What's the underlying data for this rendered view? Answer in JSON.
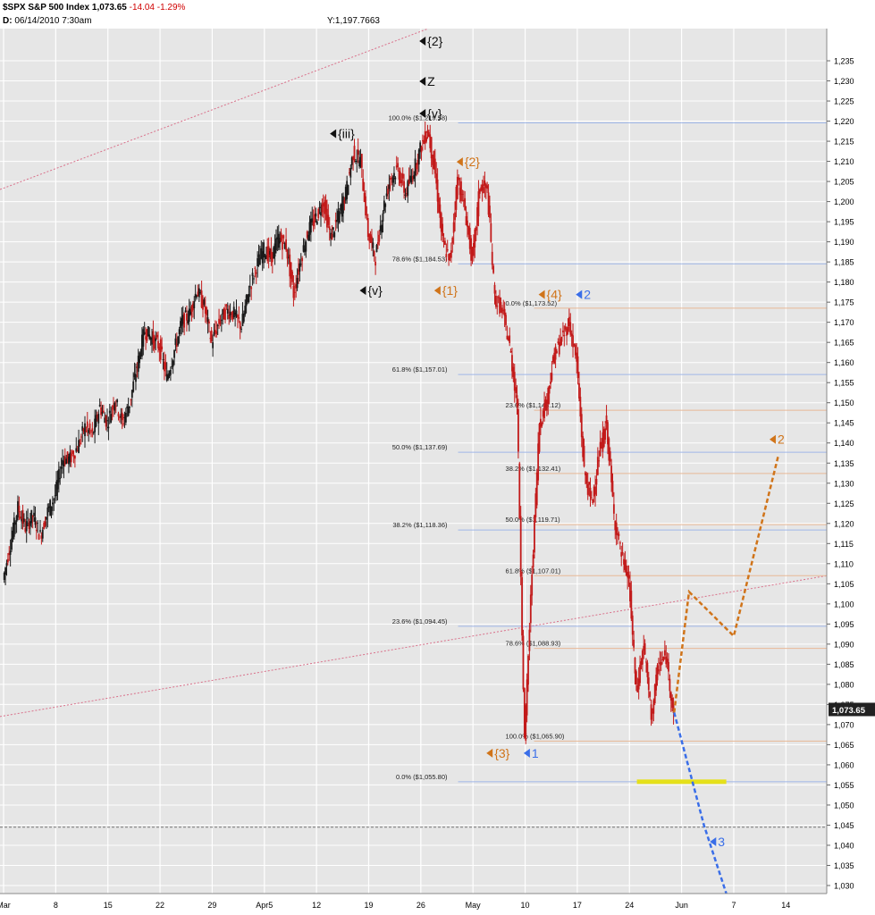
{
  "header": {
    "symbol": "$SPX",
    "name": "S&P 500 Index",
    "last": "1,073.65",
    "change": "-14.04",
    "change_pct": "-1.29%",
    "date_label": "D:",
    "date": "06/14/2010",
    "time": "7:30am",
    "y_readout": "Y:1,197.7663"
  },
  "chart_data": {
    "type": "candlestick",
    "title": "$SPX S&P 500 Index",
    "ylim": [
      1028,
      1243
    ],
    "y_ticks": [
      1030,
      1035,
      1040,
      1045,
      1050,
      1055,
      1060,
      1065,
      1070,
      1075,
      1080,
      1085,
      1090,
      1095,
      1100,
      1105,
      1110,
      1115,
      1120,
      1125,
      1130,
      1135,
      1140,
      1145,
      1150,
      1155,
      1160,
      1165,
      1170,
      1175,
      1180,
      1185,
      1190,
      1195,
      1200,
      1205,
      1210,
      1215,
      1220,
      1225,
      1230,
      1235
    ],
    "x_labels": [
      {
        "label": "Mar",
        "day": 0
      },
      {
        "label": "8",
        "day": 7
      },
      {
        "label": "15",
        "day": 14
      },
      {
        "label": "22",
        "day": 21
      },
      {
        "label": "29",
        "day": 28
      },
      {
        "label": "Apr5",
        "day": 35
      },
      {
        "label": "12",
        "day": 42
      },
      {
        "label": "19",
        "day": 49
      },
      {
        "label": "26",
        "day": 56
      },
      {
        "label": "May",
        "day": 63
      },
      {
        "label": "10",
        "day": 70
      },
      {
        "label": "17",
        "day": 77
      },
      {
        "label": "24",
        "day": 84
      },
      {
        "label": "Jun",
        "day": 91
      },
      {
        "label": "7",
        "day": 98
      },
      {
        "label": "14",
        "day": 105
      }
    ],
    "x_range_days": [
      0,
      110
    ],
    "grid": true,
    "last_price": "1,073.65",
    "price_path": [
      [
        0,
        1106
      ],
      [
        1,
        1115
      ],
      [
        2,
        1124
      ],
      [
        3,
        1119
      ],
      [
        4,
        1122
      ],
      [
        5,
        1117
      ],
      [
        6,
        1123
      ],
      [
        7,
        1127
      ],
      [
        8,
        1136
      ],
      [
        9,
        1136
      ],
      [
        10,
        1139
      ],
      [
        11,
        1144
      ],
      [
        12,
        1142
      ],
      [
        13,
        1149
      ],
      [
        14,
        1145
      ],
      [
        15,
        1151
      ],
      [
        16,
        1145
      ],
      [
        17,
        1150
      ],
      [
        18,
        1159
      ],
      [
        19,
        1168
      ],
      [
        20,
        1166
      ],
      [
        21,
        1164
      ],
      [
        22,
        1156
      ],
      [
        23,
        1163
      ],
      [
        24,
        1170
      ],
      [
        25,
        1172
      ],
      [
        26,
        1178
      ],
      [
        27,
        1174
      ],
      [
        28,
        1165
      ],
      [
        29,
        1170
      ],
      [
        30,
        1173
      ],
      [
        31,
        1172
      ],
      [
        32,
        1169
      ],
      [
        33,
        1178
      ],
      [
        34,
        1184
      ],
      [
        35,
        1188
      ],
      [
        36,
        1186
      ],
      [
        37,
        1191
      ],
      [
        38,
        1189
      ],
      [
        39,
        1177
      ],
      [
        40,
        1186
      ],
      [
        41,
        1193
      ],
      [
        42,
        1196
      ],
      [
        43,
        1200
      ],
      [
        44,
        1191
      ],
      [
        45,
        1196
      ],
      [
        46,
        1202
      ],
      [
        47,
        1212
      ],
      [
        48,
        1210
      ],
      [
        49,
        1192
      ],
      [
        50,
        1186
      ],
      [
        51,
        1198
      ],
      [
        52,
        1206
      ],
      [
        53,
        1208
      ],
      [
        54,
        1202
      ],
      [
        55,
        1207
      ],
      [
        56,
        1213
      ],
      [
        57,
        1218
      ],
      [
        58,
        1207
      ],
      [
        59,
        1190
      ],
      [
        60,
        1185
      ],
      [
        61,
        1206
      ],
      [
        62,
        1198
      ],
      [
        63,
        1185
      ],
      [
        64,
        1204
      ],
      [
        65,
        1203
      ],
      [
        66,
        1176
      ],
      [
        67,
        1173
      ],
      [
        68,
        1164
      ],
      [
        69,
        1150
      ],
      [
        70,
        1066
      ],
      [
        71,
        1108
      ],
      [
        72,
        1145
      ],
      [
        73,
        1151
      ],
      [
        74,
        1162
      ],
      [
        75,
        1166
      ],
      [
        76,
        1170
      ],
      [
        77,
        1160
      ],
      [
        78,
        1133
      ],
      [
        79,
        1125
      ],
      [
        80,
        1137
      ],
      [
        81,
        1145
      ],
      [
        82,
        1122
      ],
      [
        83,
        1112
      ],
      [
        84,
        1106
      ],
      [
        85,
        1078
      ],
      [
        86,
        1090
      ],
      [
        87,
        1072
      ],
      [
        88,
        1085
      ],
      [
        89,
        1087
      ],
      [
        90,
        1073
      ]
    ],
    "fib_retracements": [
      {
        "label": "100.0%",
        "value": "($1,219.58)",
        "price": 1219.58
      },
      {
        "label": "78.6%",
        "value": "($1,184.53)",
        "price": 1184.53
      },
      {
        "label": "61.8%",
        "value": "($1,157.01)",
        "price": 1157.01
      },
      {
        "label": "50.0%",
        "value": "($1,137.69)",
        "price": 1137.69
      },
      {
        "label": "38.2%",
        "value": "($1,118.36)",
        "price": 1118.36
      },
      {
        "label": "23.6%",
        "value": "($1,094.45)",
        "price": 1094.45
      },
      {
        "label": "0.0%",
        "value": "($1,055.80)",
        "price": 1055.8
      }
    ],
    "fib_retracements_2": [
      {
        "label": "0.0%",
        "value": "($1,173.52)",
        "price": 1173.52
      },
      {
        "label": "23.6%",
        "value": "($1,148.12)",
        "price": 1148.12
      },
      {
        "label": "38.2%",
        "value": "($1,132.41)",
        "price": 1132.41
      },
      {
        "label": "50.0%",
        "value": "($1,119.71)",
        "price": 1119.71
      },
      {
        "label": "61.8%",
        "value": "($1,107.01)",
        "price": 1107.01
      },
      {
        "label": "78.6%",
        "value": "($1,088.93)",
        "price": 1088.93
      },
      {
        "label": "100.0%",
        "value": "($1,065.90)",
        "price": 1065.9
      }
    ],
    "wave_labels": [
      {
        "text": "{2}",
        "color": "#111111",
        "day": 57,
        "price": 1239
      },
      {
        "text": "Z",
        "color": "#111111",
        "day": 57,
        "price": 1229
      },
      {
        "text": "{v}",
        "color": "#111111",
        "day": 57,
        "price": 1221
      },
      {
        "text": "{iii}",
        "color": "#111111",
        "day": 45,
        "price": 1216
      },
      {
        "text": "{v}",
        "color": "#111111",
        "day": 49,
        "price": 1177
      },
      {
        "text": "{2}",
        "color": "#d0741a",
        "day": 62,
        "price": 1209
      },
      {
        "text": "{1}",
        "color": "#d0741a",
        "day": 59,
        "price": 1177
      },
      {
        "text": "{4}",
        "color": "#d0741a",
        "day": 73,
        "price": 1176
      },
      {
        "text": "2",
        "color": "#3a6ee8",
        "day": 78,
        "price": 1176
      },
      {
        "text": "{3}",
        "color": "#d0741a",
        "day": 66,
        "price": 1062
      },
      {
        "text": "1",
        "color": "#3a6ee8",
        "day": 71,
        "price": 1062
      },
      {
        "text": "2",
        "color": "#d0741a",
        "day": 104,
        "price": 1140
      },
      {
        "text": "3",
        "color": "#3a6ee8",
        "day": 96,
        "price": 1040
      }
    ],
    "projections": [
      {
        "name": "orange",
        "color": "#d0741a",
        "points": [
          [
            90,
            1073
          ],
          [
            92,
            1103
          ],
          [
            98,
            1092
          ],
          [
            104,
            1137
          ]
        ]
      },
      {
        "name": "blue",
        "color": "#3a6ee8",
        "points": [
          [
            90,
            1073
          ],
          [
            94,
            1045
          ],
          [
            97,
            1028
          ]
        ]
      }
    ],
    "support_line_price": 1055.8,
    "horizontal_line_price": 1044.5
  }
}
